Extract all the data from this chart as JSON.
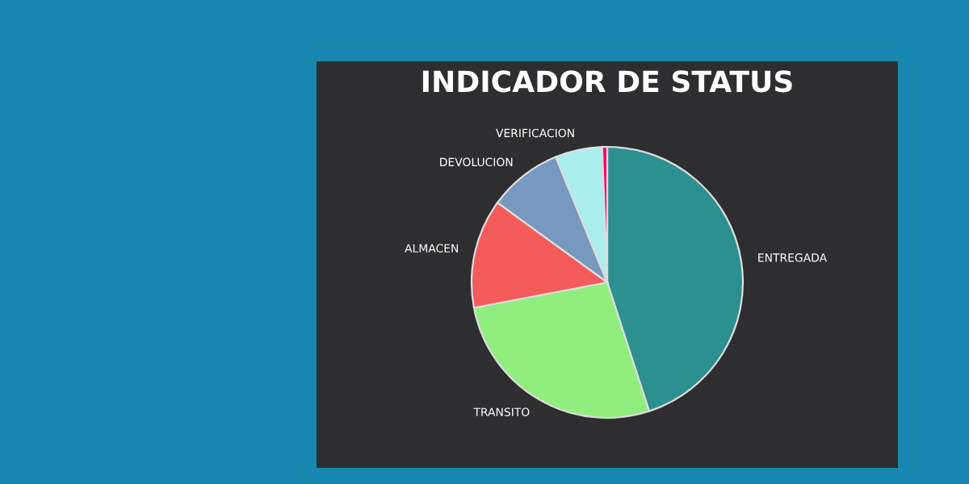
{
  "chart_data": {
    "type": "pie",
    "title": "INDICADOR DE STATUS",
    "categories": [
      "ENTREGADA",
      "TRANSITO",
      "ALMACEN",
      "DEVOLUCION",
      "VERIFICACION",
      null
    ],
    "values": [
      45,
      27,
      13,
      8.8,
      5.6,
      0.6
    ],
    "colors": [
      "#2b908f",
      "#90ee7e",
      "#f45b5b",
      "#7798bf",
      "#aaeeee",
      "#ff0066"
    ]
  }
}
